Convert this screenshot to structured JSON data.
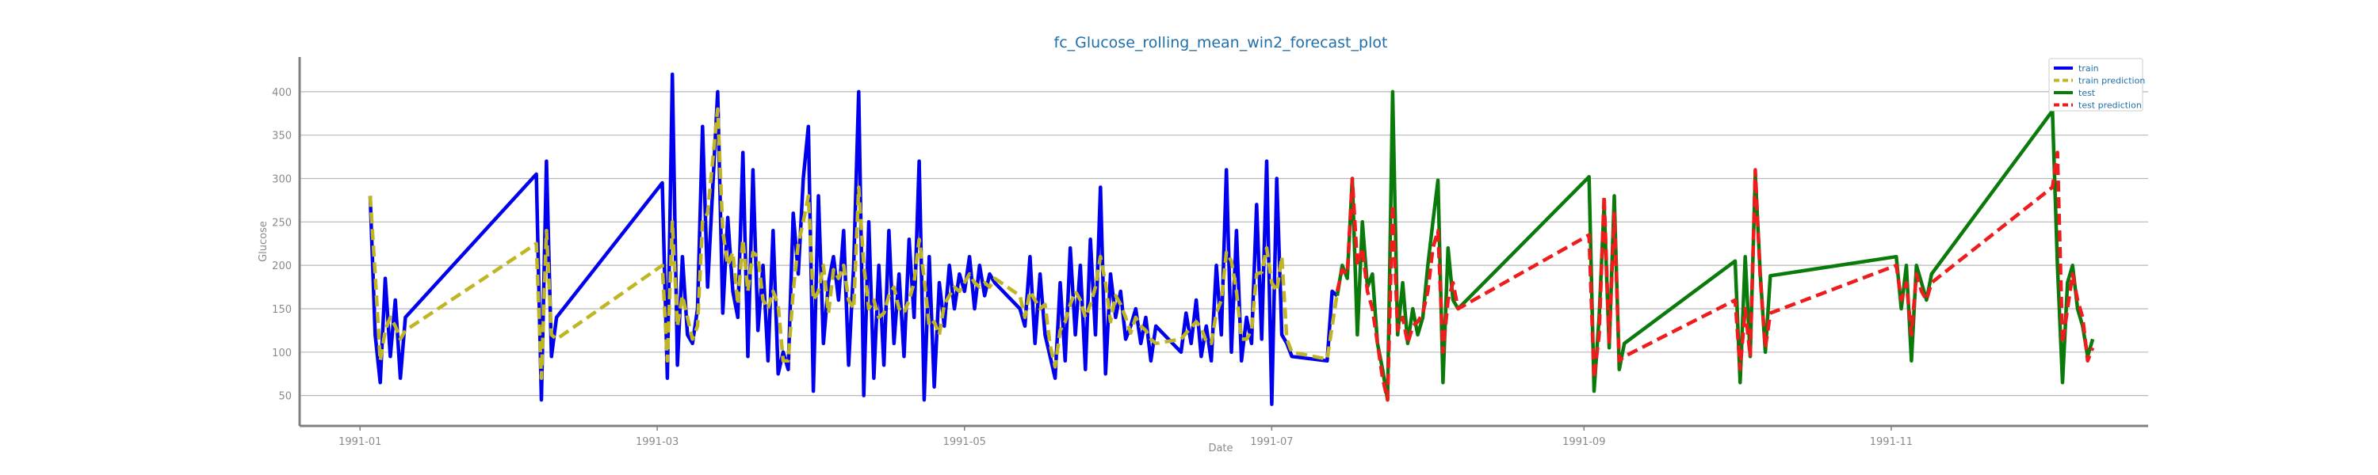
{
  "chart_data": {
    "type": "line",
    "title": "fc_Glucose_rolling_mean_win2_forecast_plot",
    "xlabel": "Date",
    "ylabel": "Glucose",
    "xlim": [
      "1990-12-20",
      "1991-12-22"
    ],
    "ylim": [
      15,
      440
    ],
    "x_ticks": [
      "1991-01",
      "1991-03",
      "1991-05",
      "1991-07",
      "1991-09",
      "1991-11"
    ],
    "x_tick_dates": [
      "1991-01-01",
      "1991-03-01",
      "1991-05-01",
      "1991-07-01",
      "1991-09-01",
      "1991-11-01"
    ],
    "y_ticks": [
      50,
      100,
      150,
      200,
      250,
      300,
      350,
      400
    ],
    "grid": "horizontal",
    "legend_position": "top-right",
    "colors": {
      "train": "#0000ee",
      "train_prediction": "#c0b624",
      "test": "#0a7a0a",
      "test_prediction": "#ee1c1c"
    },
    "series": [
      {
        "name": "train",
        "style": "solid",
        "x": [
          "1991-01-03",
          "1991-01-04",
          "1991-01-05",
          "1991-01-06",
          "1991-01-07",
          "1991-01-08",
          "1991-01-09",
          "1991-01-10",
          "1991-02-05",
          "1991-02-06",
          "1991-02-07",
          "1991-02-08",
          "1991-02-09",
          "1991-03-02",
          "1991-03-03",
          "1991-03-04",
          "1991-03-05",
          "1991-03-06",
          "1991-03-07",
          "1991-03-08",
          "1991-03-09",
          "1991-03-10",
          "1991-03-11",
          "1991-03-13",
          "1991-03-14",
          "1991-03-15",
          "1991-03-16",
          "1991-03-17",
          "1991-03-18",
          "1991-03-19",
          "1991-03-20",
          "1991-03-21",
          "1991-03-22",
          "1991-03-23",
          "1991-03-24",
          "1991-03-25",
          "1991-03-26",
          "1991-03-27",
          "1991-03-28",
          "1991-03-29",
          "1991-03-30",
          "1991-03-31",
          "1991-04-01",
          "1991-04-02",
          "1991-04-03",
          "1991-04-04",
          "1991-04-05",
          "1991-04-06",
          "1991-04-07",
          "1991-04-08",
          "1991-04-09",
          "1991-04-10",
          "1991-04-11",
          "1991-04-12",
          "1991-04-13",
          "1991-04-14",
          "1991-04-15",
          "1991-04-16",
          "1991-04-17",
          "1991-04-18",
          "1991-04-19",
          "1991-04-20",
          "1991-04-21",
          "1991-04-22",
          "1991-04-23",
          "1991-04-24",
          "1991-04-25",
          "1991-04-26",
          "1991-04-27",
          "1991-04-28",
          "1991-04-29",
          "1991-04-30",
          "1991-05-01",
          "1991-05-02",
          "1991-05-03",
          "1991-05-04",
          "1991-05-05",
          "1991-05-06",
          "1991-05-07",
          "1991-05-12",
          "1991-05-13",
          "1991-05-14",
          "1991-05-15",
          "1991-05-16",
          "1991-05-17",
          "1991-05-18",
          "1991-05-19",
          "1991-05-20",
          "1991-05-21",
          "1991-05-22",
          "1991-05-23",
          "1991-05-24",
          "1991-05-25",
          "1991-05-26",
          "1991-05-27",
          "1991-05-28",
          "1991-05-29",
          "1991-05-30",
          "1991-05-31",
          "1991-06-01",
          "1991-06-02",
          "1991-06-03",
          "1991-06-04",
          "1991-06-05",
          "1991-06-06",
          "1991-06-07",
          "1991-06-08",
          "1991-06-13",
          "1991-06-14",
          "1991-06-15",
          "1991-06-16",
          "1991-06-17",
          "1991-06-18",
          "1991-06-19",
          "1991-06-20",
          "1991-06-21",
          "1991-06-22",
          "1991-06-23",
          "1991-06-24",
          "1991-06-25",
          "1991-06-26",
          "1991-06-27",
          "1991-06-28",
          "1991-06-29",
          "1991-06-30",
          "1991-07-01",
          "1991-07-02",
          "1991-07-03",
          "1991-07-04",
          "1991-07-05",
          "1991-07-12",
          "1991-07-13",
          "1991-07-14"
        ],
        "y": [
          280,
          120,
          65,
          185,
          95,
          160,
          70,
          140,
          305,
          45,
          320,
          95,
          140,
          295,
          70,
          420,
          85,
          210,
          120,
          110,
          150,
          360,
          175,
          400,
          145,
          255,
          170,
          140,
          330,
          95,
          310,
          125,
          200,
          90,
          240,
          75,
          100,
          80,
          260,
          190,
          300,
          360,
          55,
          280,
          110,
          180,
          210,
          160,
          240,
          85,
          200,
          400,
          50,
          250,
          70,
          200,
          85,
          240,
          110,
          190,
          95,
          230,
          140,
          320,
          45,
          210,
          60,
          180,
          130,
          200,
          150,
          190,
          170,
          210,
          150,
          200,
          165,
          190,
          180,
          150,
          130,
          210,
          110,
          190,
          120,
          95,
          70,
          180,
          90,
          220,
          120,
          200,
          80,
          230,
          120,
          290,
          75,
          190,
          140,
          170,
          115,
          130,
          150,
          110,
          140,
          90,
          130,
          100,
          145,
          110,
          160,
          95,
          130,
          90,
          200,
          120,
          310,
          100,
          240,
          90,
          140,
          110,
          270,
          115,
          320,
          40,
          300,
          120,
          110,
          95,
          90,
          170,
          165
        ]
      },
      {
        "name": "train prediction",
        "style": "dashed",
        "x": [
          "1991-01-03",
          "1991-01-04",
          "1991-01-05",
          "1991-01-06",
          "1991-01-07",
          "1991-01-08",
          "1991-01-09",
          "1991-01-10",
          "1991-02-05",
          "1991-02-06",
          "1991-02-07",
          "1991-02-08",
          "1991-02-09",
          "1991-03-02",
          "1991-03-03",
          "1991-03-04",
          "1991-03-05",
          "1991-03-06",
          "1991-03-07",
          "1991-03-08",
          "1991-03-09",
          "1991-03-10",
          "1991-03-11",
          "1991-03-13",
          "1991-03-14",
          "1991-03-15",
          "1991-03-16",
          "1991-03-17",
          "1991-03-18",
          "1991-03-19",
          "1991-03-20",
          "1991-03-21",
          "1991-03-22",
          "1991-03-23",
          "1991-03-24",
          "1991-03-25",
          "1991-03-26",
          "1991-03-27",
          "1991-03-28",
          "1991-03-29",
          "1991-03-30",
          "1991-03-31",
          "1991-04-01",
          "1991-04-02",
          "1991-04-03",
          "1991-04-04",
          "1991-04-05",
          "1991-04-06",
          "1991-04-07",
          "1991-04-08",
          "1991-04-09",
          "1991-04-10",
          "1991-04-11",
          "1991-04-12",
          "1991-04-13",
          "1991-04-14",
          "1991-04-15",
          "1991-04-16",
          "1991-04-17",
          "1991-04-18",
          "1991-04-19",
          "1991-04-20",
          "1991-04-21",
          "1991-04-22",
          "1991-04-23",
          "1991-04-24",
          "1991-04-25",
          "1991-04-26",
          "1991-04-27",
          "1991-04-28",
          "1991-04-29",
          "1991-04-30",
          "1991-05-01",
          "1991-05-02",
          "1991-05-03",
          "1991-05-04",
          "1991-05-05",
          "1991-05-06",
          "1991-05-07",
          "1991-05-12",
          "1991-05-13",
          "1991-05-14",
          "1991-05-15",
          "1991-05-16",
          "1991-05-17",
          "1991-05-18",
          "1991-05-19",
          "1991-05-20",
          "1991-05-21",
          "1991-05-22",
          "1991-05-23",
          "1991-05-24",
          "1991-05-25",
          "1991-05-26",
          "1991-05-27",
          "1991-05-28",
          "1991-05-29",
          "1991-05-30",
          "1991-05-31",
          "1991-06-01",
          "1991-06-02",
          "1991-06-03",
          "1991-06-04",
          "1991-06-05",
          "1991-06-06",
          "1991-06-07",
          "1991-06-08",
          "1991-06-13",
          "1991-06-14",
          "1991-06-15",
          "1991-06-16",
          "1991-06-17",
          "1991-06-18",
          "1991-06-19",
          "1991-06-20",
          "1991-06-21",
          "1991-06-22",
          "1991-06-23",
          "1991-06-24",
          "1991-06-25",
          "1991-06-26",
          "1991-06-27",
          "1991-06-28",
          "1991-06-29",
          "1991-06-30",
          "1991-07-01",
          "1991-07-02",
          "1991-07-03",
          "1991-07-04",
          "1991-07-05",
          "1991-07-12",
          "1991-07-13",
          "1991-07-14"
        ],
        "y": [
          280,
          190,
          90,
          125,
          140,
          130,
          115,
          125,
          225,
          70,
          240,
          120,
          115,
          200,
          90,
          250,
          130,
          165,
          140,
          115,
          130,
          250,
          260,
          380,
          240,
          200,
          215,
          155,
          230,
          170,
          215,
          210,
          160,
          150,
          170,
          155,
          90,
          90,
          170,
          225,
          250,
          280,
          160,
          170,
          200,
          145,
          195,
          185,
          200,
          160,
          150,
          290,
          200,
          150,
          160,
          140,
          145,
          165,
          175,
          150,
          145,
          160,
          180,
          230,
          185,
          130,
          135,
          120,
          155,
          165,
          175,
          170,
          180,
          190,
          180,
          175,
          180,
          175,
          185,
          165,
          140,
          170,
          160,
          150,
          155,
          108,
          83,
          125,
          135,
          155,
          170,
          160,
          140,
          155,
          175,
          210,
          180,
          135,
          165,
          155,
          140,
          122,
          140,
          130,
          125,
          115,
          110,
          115,
          122,
          128,
          135,
          128,
          112,
          110,
          145,
          160,
          215,
          205,
          170,
          115,
          115,
          125,
          190,
          192,
          220,
          180,
          170,
          210,
          115,
          100,
          92,
          130,
          168
        ]
      },
      {
        "name": "test",
        "style": "solid",
        "x": [
          "1991-07-14",
          "1991-07-15",
          "1991-07-16",
          "1991-07-17",
          "1991-07-18",
          "1991-07-19",
          "1991-07-20",
          "1991-07-21",
          "1991-07-22",
          "1991-07-23",
          "1991-07-24",
          "1991-07-25",
          "1991-07-26",
          "1991-07-27",
          "1991-07-28",
          "1991-07-29",
          "1991-07-30",
          "1991-07-31",
          "1991-08-01",
          "1991-08-02",
          "1991-08-03",
          "1991-08-04",
          "1991-08-05",
          "1991-08-06",
          "1991-08-07",
          "1991-09-02",
          "1991-09-03",
          "1991-09-04",
          "1991-09-05",
          "1991-09-06",
          "1991-09-07",
          "1991-09-08",
          "1991-09-09",
          "1991-10-01",
          "1991-10-02",
          "1991-10-03",
          "1991-10-04",
          "1991-10-05",
          "1991-10-06",
          "1991-10-07",
          "1991-10-08",
          "1991-11-02",
          "1991-11-03",
          "1991-11-04",
          "1991-11-05",
          "1991-11-06",
          "1991-11-07",
          "1991-11-08",
          "1991-11-09",
          "1991-12-03",
          "1991-12-04",
          "1991-12-05",
          "1991-12-06",
          "1991-12-07",
          "1991-12-08",
          "1991-12-09",
          "1991-12-10",
          "1991-12-11"
        ],
        "y": [
          165,
          200,
          185,
          300,
          120,
          250,
          175,
          190,
          110,
          80,
          45,
          400,
          120,
          180,
          110,
          150,
          120,
          140,
          200,
          250,
          298,
          65,
          220,
          160,
          150,
          302,
          55,
          140,
          270,
          105,
          280,
          80,
          110,
          205,
          65,
          210,
          95,
          305,
          190,
          100,
          188,
          210,
          150,
          200,
          90,
          200,
          180,
          160,
          190,
          378,
          200,
          65,
          180,
          200,
          150,
          130,
          95,
          115
        ]
      },
      {
        "name": "test prediction",
        "style": "dashed",
        "x": [
          "1991-07-14",
          "1991-07-15",
          "1991-07-16",
          "1991-07-17",
          "1991-07-18",
          "1991-07-19",
          "1991-07-20",
          "1991-07-21",
          "1991-07-22",
          "1991-07-23",
          "1991-07-24",
          "1991-07-25",
          "1991-07-26",
          "1991-07-27",
          "1991-07-28",
          "1991-07-29",
          "1991-07-30",
          "1991-07-31",
          "1991-08-01",
          "1991-08-02",
          "1991-08-03",
          "1991-08-04",
          "1991-08-05",
          "1991-08-06",
          "1991-08-07",
          "1991-09-02",
          "1991-09-03",
          "1991-09-04",
          "1991-09-05",
          "1991-09-06",
          "1991-09-07",
          "1991-09-08",
          "1991-09-09",
          "1991-10-01",
          "1991-10-02",
          "1991-10-03",
          "1991-10-04",
          "1991-10-05",
          "1991-10-06",
          "1991-10-07",
          "1991-10-08",
          "1991-11-02",
          "1991-11-03",
          "1991-11-04",
          "1991-11-05",
          "1991-11-06",
          "1991-11-07",
          "1991-11-08",
          "1991-11-09",
          "1991-12-03",
          "1991-12-04",
          "1991-12-05",
          "1991-12-06",
          "1991-12-07",
          "1991-12-08",
          "1991-12-09",
          "1991-12-10",
          "1991-12-11"
        ],
        "y": [
          170,
          195,
          190,
          300,
          200,
          220,
          170,
          150,
          110,
          70,
          45,
          270,
          125,
          140,
          110,
          130,
          135,
          145,
          170,
          220,
          240,
          100,
          160,
          180,
          150,
          235,
          70,
          120,
          280,
          110,
          260,
          90,
          95,
          160,
          80,
          150,
          95,
          310,
          185,
          105,
          145,
          200,
          160,
          180,
          120,
          190,
          170,
          160,
          180,
          290,
          330,
          110,
          150,
          190,
          160,
          140,
          90,
          105
        ]
      }
    ]
  }
}
